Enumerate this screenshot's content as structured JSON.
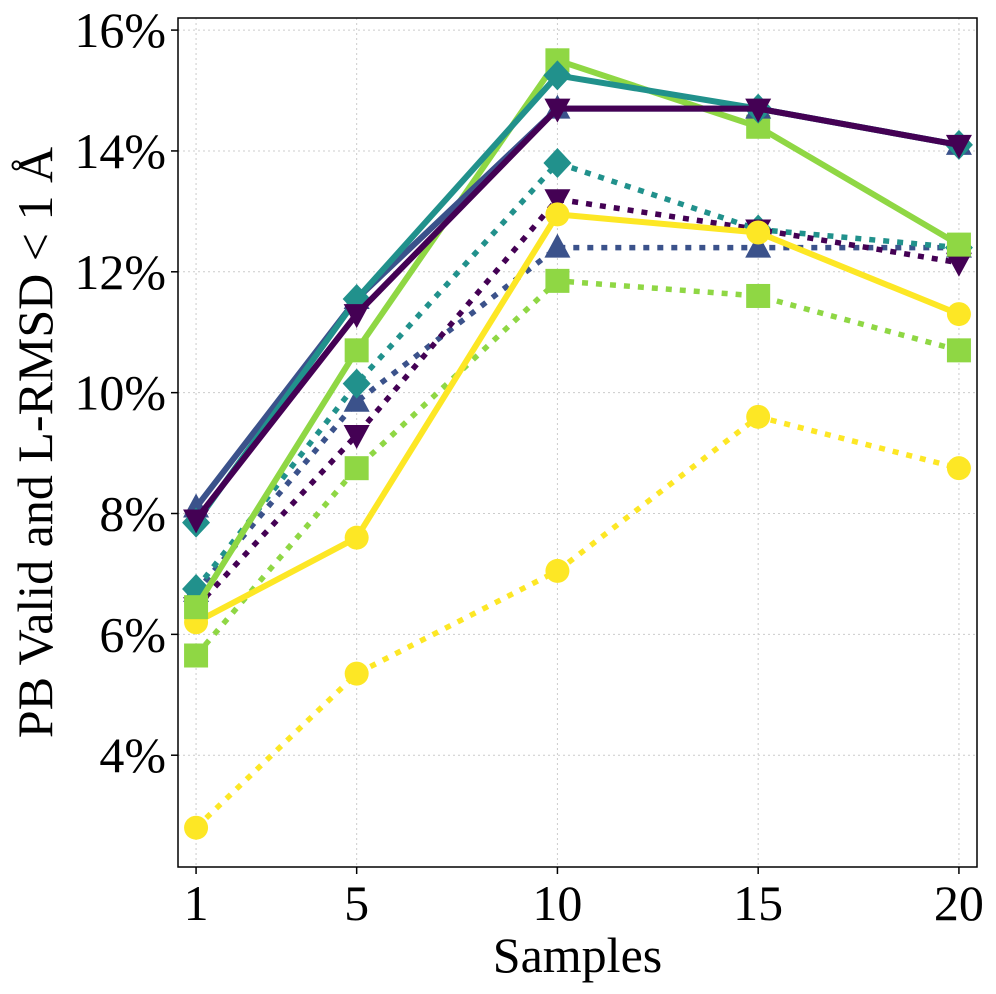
{
  "chart_data": {
    "type": "line",
    "title": "",
    "xlabel": "Samples",
    "ylabel": "PB Valid and L-RMSD < 1 Å",
    "x": [
      1,
      5,
      10,
      15,
      20
    ],
    "x_ticks": [
      1,
      5,
      10,
      15,
      20
    ],
    "x_tick_labels": [
      "1",
      "5",
      "10",
      "15",
      "20"
    ],
    "xlim": [
      0.55,
      20.45
    ],
    "y_ticks": [
      4,
      6,
      8,
      10,
      12,
      14,
      16
    ],
    "y_tick_labels": [
      "4%",
      "6%",
      "8%",
      "10%",
      "12%",
      "14%",
      "16%"
    ],
    "ylim": [
      2.15,
      16.2
    ],
    "grid": true,
    "legend": "none",
    "series": [
      {
        "name": "dotted-circle-yellow",
        "color": "#fde725",
        "style": "dotted",
        "marker": "circle",
        "values": [
          2.8,
          5.35,
          7.05,
          9.6,
          8.75
        ]
      },
      {
        "name": "dotted-square-lightgreen",
        "color": "#8fd744",
        "style": "dotted",
        "marker": "square",
        "values": [
          5.65,
          8.75,
          11.85,
          11.6,
          10.7
        ]
      },
      {
        "name": "dotted-triangle-up-blue",
        "color": "#3b528b",
        "style": "dotted",
        "marker": "triangle-up",
        "values": [
          6.7,
          9.85,
          12.4,
          12.4,
          12.4
        ]
      },
      {
        "name": "dotted-diamond-teal",
        "color": "#21918c",
        "style": "dotted",
        "marker": "diamond",
        "values": [
          6.75,
          10.15,
          13.8,
          12.7,
          12.4
        ]
      },
      {
        "name": "dotted-triangle-down-purple",
        "color": "#440154",
        "style": "dotted",
        "marker": "triangle-down",
        "values": [
          6.45,
          9.3,
          13.2,
          12.7,
          12.15
        ]
      },
      {
        "name": "solid-circle-yellow",
        "color": "#fde725",
        "style": "solid",
        "marker": "circle",
        "values": [
          6.2,
          7.6,
          12.95,
          12.65,
          11.3
        ]
      },
      {
        "name": "solid-square-lightgreen",
        "color": "#8fd744",
        "style": "solid",
        "marker": "square",
        "values": [
          6.45,
          10.7,
          15.5,
          14.4,
          12.45
        ]
      },
      {
        "name": "solid-triangle-up-blue",
        "color": "#3b528b",
        "style": "solid",
        "marker": "triangle-up",
        "values": [
          8.1,
          11.55,
          14.7,
          14.7,
          14.1
        ]
      },
      {
        "name": "solid-diamond-teal",
        "color": "#21918c",
        "style": "solid",
        "marker": "diamond",
        "values": [
          7.85,
          11.55,
          15.25,
          14.7,
          14.1
        ]
      },
      {
        "name": "solid-triangle-down-purple",
        "color": "#440154",
        "style": "solid",
        "marker": "triangle-down",
        "values": [
          7.9,
          11.3,
          14.7,
          14.7,
          14.1
        ]
      }
    ]
  }
}
